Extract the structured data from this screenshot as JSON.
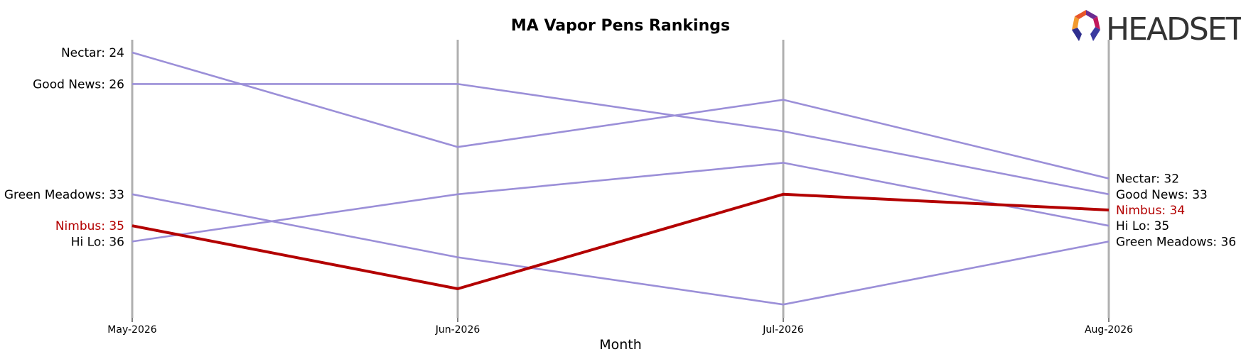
{
  "chart_data": {
    "type": "line",
    "title": "MA Vapor Pens Rankings",
    "xlabel": "Month",
    "ylabel": "",
    "x": [
      "May-2026",
      "Jun-2026",
      "Jul-2026",
      "Aug-2026"
    ],
    "y_inverted": true,
    "ylim": [
      23.5,
      40.5
    ],
    "grid": "vertical lines at each month",
    "highlight_color": "#b30000",
    "default_color": "#9b8fd8",
    "axis_line_color": "#b0b0b0",
    "series": [
      {
        "name": "Nectar",
        "values": [
          24,
          30,
          27,
          32
        ],
        "highlight": false
      },
      {
        "name": "Good News",
        "values": [
          26,
          26,
          29,
          33
        ],
        "highlight": false
      },
      {
        "name": "Green Meadows",
        "values": [
          33,
          37,
          40,
          36
        ],
        "highlight": false
      },
      {
        "name": "Hi Lo",
        "values": [
          36,
          33,
          31,
          35
        ],
        "highlight": false
      },
      {
        "name": "Nimbus",
        "values": [
          35,
          39,
          33,
          34
        ],
        "highlight": true
      }
    ],
    "left_labels": [
      {
        "series": "Nectar",
        "text": "Nectar: 24"
      },
      {
        "series": "Good News",
        "text": "Good News: 26"
      },
      {
        "series": "Green Meadows",
        "text": "Green Meadows: 33"
      },
      {
        "series": "Nimbus",
        "text": "Nimbus: 35"
      },
      {
        "series": "Hi Lo",
        "text": "Hi Lo: 36"
      }
    ],
    "right_labels": [
      {
        "series": "Nectar",
        "text": "Nectar: 32"
      },
      {
        "series": "Good News",
        "text": "Good News: 33"
      },
      {
        "series": "Nimbus",
        "text": "Nimbus: 34"
      },
      {
        "series": "Hi Lo",
        "text": "Hi Lo: 35"
      },
      {
        "series": "Green Meadows",
        "text": "Green Meadows: 36"
      }
    ]
  },
  "logo": {
    "text": "HEADSET",
    "icon": "headset-hexagon-logo-icon",
    "colors": [
      "#e8552a",
      "#f29a2e",
      "#c2185b",
      "#2f2f8f",
      "#6a2c91"
    ]
  }
}
